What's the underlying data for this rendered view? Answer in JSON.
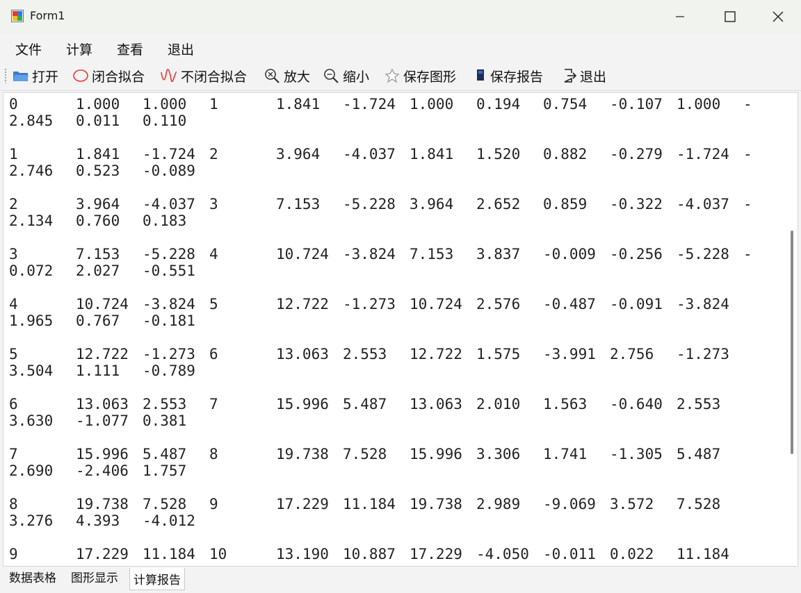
{
  "window": {
    "title": "Form1"
  },
  "menu": [
    "文件",
    "计算",
    "查看",
    "退出"
  ],
  "toolbar": {
    "open": "打开",
    "closed_fit": "闭合拟合",
    "open_fit": "不闭合拟合",
    "zoom_in": "放大",
    "zoom_out": "缩小",
    "save_figure": "保存图形",
    "save_report": "保存报告",
    "exit": "退出"
  },
  "report_rows": [
    {
      "line1": [
        "0",
        "1.000",
        "1.000",
        "1",
        "1.841",
        "-1.724",
        "1.000",
        "0.194",
        "0.754",
        "-0.107",
        "1.000",
        "-"
      ],
      "line2": [
        "2.845",
        "0.011",
        "0.110"
      ]
    },
    {
      "line1": [
        "1",
        "1.841",
        "-1.724",
        "2",
        "3.964",
        "-4.037",
        "1.841",
        "1.520",
        "0.882",
        "-0.279",
        "-1.724",
        "-"
      ],
      "line2": [
        "2.746",
        "0.523",
        "-0.089"
      ]
    },
    {
      "line1": [
        "2",
        "3.964",
        "-4.037",
        "3",
        "7.153",
        "-5.228",
        "3.964",
        "2.652",
        "0.859",
        "-0.322",
        "-4.037",
        "-"
      ],
      "line2": [
        "2.134",
        "0.760",
        "0.183"
      ]
    },
    {
      "line1": [
        "3",
        "7.153",
        "-5.228",
        "4",
        "10.724",
        "-3.824",
        "7.153",
        "3.837",
        "-0.009",
        "-0.256",
        "-5.228",
        "-"
      ],
      "line2": [
        "0.072",
        "2.027",
        "-0.551"
      ]
    },
    {
      "line1": [
        "4",
        "10.724",
        "-3.824",
        "5",
        "12.722",
        "-1.273",
        "10.724",
        "2.576",
        "-0.487",
        "-0.091",
        "-3.824",
        ""
      ],
      "line2": [
        "1.965",
        "0.767",
        "-0.181"
      ]
    },
    {
      "line1": [
        "5",
        "12.722",
        "-1.273",
        "6",
        "13.063",
        "2.553",
        "12.722",
        "1.575",
        "-3.991",
        "2.756",
        "-1.273",
        ""
      ],
      "line2": [
        "3.504",
        "1.111",
        "-0.789"
      ]
    },
    {
      "line1": [
        "6",
        "13.063",
        "2.553",
        "7",
        "15.996",
        "5.487",
        "13.063",
        "2.010",
        "1.563",
        "-0.640",
        "2.553",
        ""
      ],
      "line2": [
        "3.630",
        "-1.077",
        "0.381"
      ]
    },
    {
      "line1": [
        "7",
        "15.996",
        "5.487",
        "8",
        "19.738",
        "7.528",
        "15.996",
        "3.306",
        "1.741",
        "-1.305",
        "5.487",
        ""
      ],
      "line2": [
        "2.690",
        "-2.406",
        "1.757"
      ]
    },
    {
      "line1": [
        "8",
        "19.738",
        "7.528",
        "9",
        "17.229",
        "11.184",
        "19.738",
        "2.989",
        "-9.069",
        "3.572",
        "7.528",
        ""
      ],
      "line2": [
        "3.276",
        "4.393",
        "-4.012"
      ]
    },
    {
      "line1": [
        "9",
        "17.229",
        "11.184",
        "10",
        "13.190",
        "10.887",
        "17.229",
        "-4.050",
        "-0.011",
        "0.022",
        "11.184",
        ""
      ],
      "line2": [
        "",
        "",
        ""
      ]
    }
  ],
  "tabs": [
    {
      "label": "数据表格",
      "active": false
    },
    {
      "label": "图形显示",
      "active": false
    },
    {
      "label": "计算报告",
      "active": true
    }
  ]
}
